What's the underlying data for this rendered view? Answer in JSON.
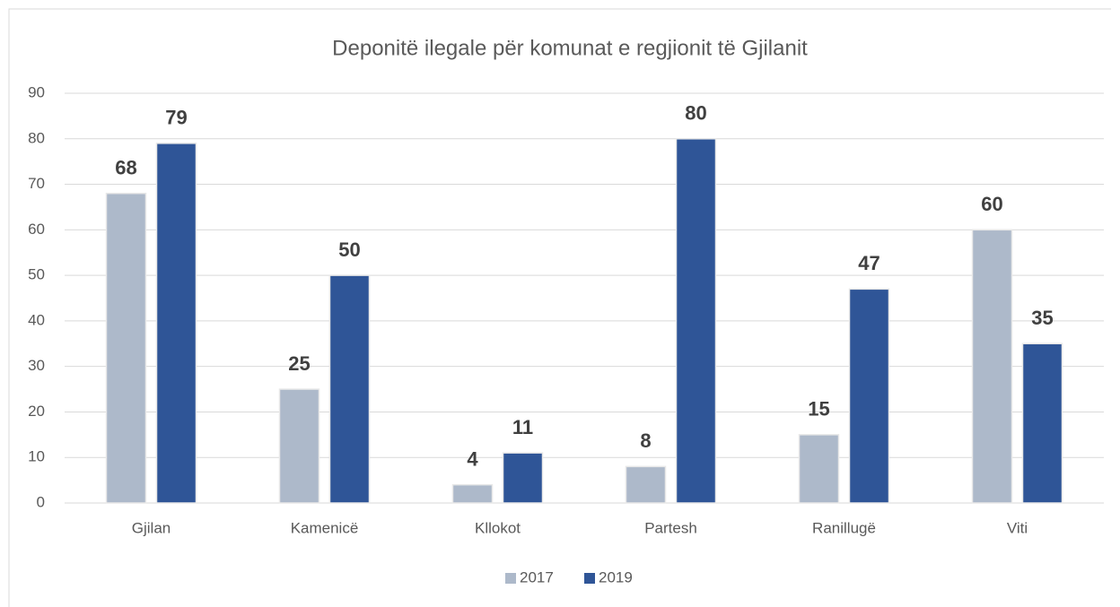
{
  "chart_data": {
    "type": "bar",
    "title": "Deponitë ilegale për komunat e regjionit të Gjilanit",
    "categories": [
      "Gjilan",
      "Kamenicë",
      "Kllokot",
      "Partesh",
      "Ranillugë",
      "Viti"
    ],
    "series": [
      {
        "name": "2017",
        "color": "#adb9ca",
        "values": [
          68,
          25,
          4,
          8,
          15,
          60
        ]
      },
      {
        "name": "2019",
        "color": "#2f5597",
        "values": [
          79,
          50,
          11,
          80,
          47,
          35
        ]
      }
    ],
    "ylim": [
      0,
      90
    ],
    "yticks": [
      0,
      10,
      20,
      30,
      40,
      50,
      60,
      70,
      80,
      90
    ],
    "grid": true,
    "legend": "bottom"
  }
}
